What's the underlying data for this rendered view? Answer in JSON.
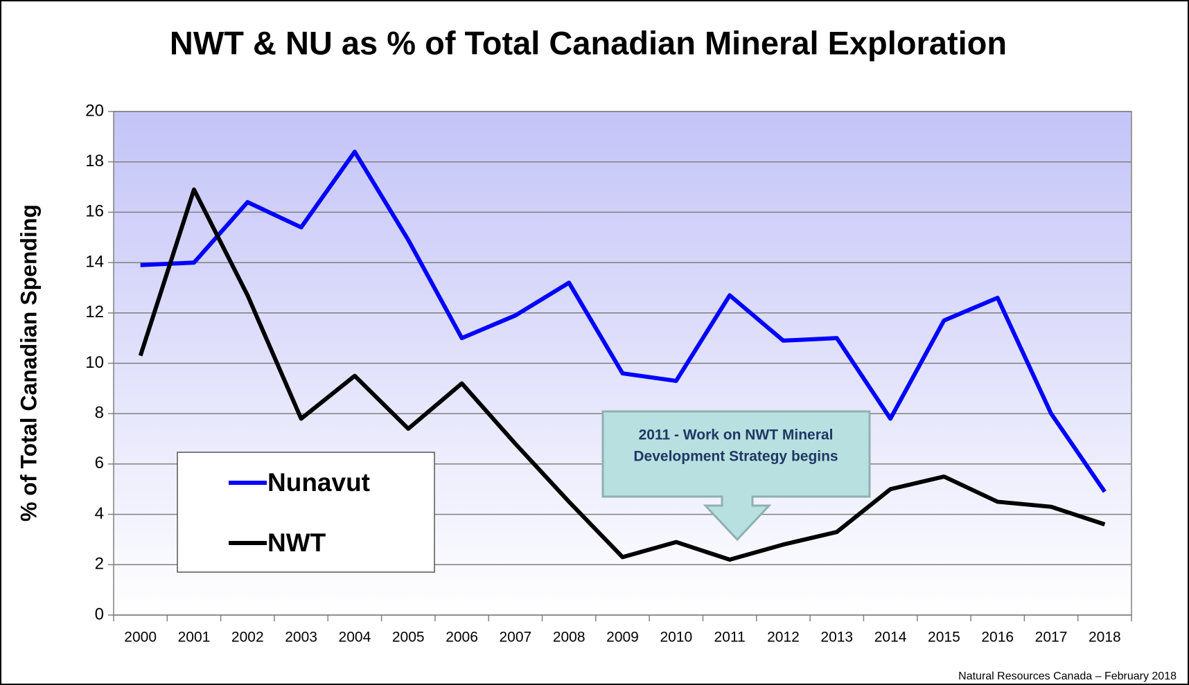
{
  "chart_data": {
    "type": "line",
    "title": "NWT & NU as % of Total Canadian Mineral Exploration",
    "y_label": "% of Total Canadian Spending",
    "source": "Natural Resources Canada – February 2018",
    "annotation": [
      "2011 - Work on NWT Mineral",
      "Development Strategy begins"
    ],
    "categories": [
      "2000",
      "2001",
      "2002",
      "2003",
      "2004",
      "2005",
      "2006",
      "2007",
      "2008",
      "2009",
      "2010",
      "2011",
      "2012",
      "2013",
      "2014",
      "2015",
      "2016",
      "2017",
      "2018"
    ],
    "series": [
      {
        "name": "Nunavut",
        "color": "#0000ff",
        "values": [
          13.9,
          14.0,
          16.4,
          15.4,
          18.4,
          14.9,
          11.0,
          11.9,
          13.2,
          9.6,
          9.3,
          12.7,
          10.9,
          11.0,
          7.8,
          11.7,
          12.6,
          8.0,
          4.9
        ]
      },
      {
        "name": "NWT",
        "color": "#000000",
        "values": [
          10.3,
          16.9,
          12.7,
          7.8,
          9.5,
          7.4,
          9.2,
          6.8,
          4.5,
          2.3,
          2.9,
          2.2,
          2.8,
          3.3,
          5.0,
          5.5,
          4.5,
          4.3,
          3.6
        ]
      }
    ],
    "ylim": [
      0,
      20
    ],
    "yticks": [
      0,
      2,
      4,
      6,
      8,
      10,
      12,
      14,
      16,
      18,
      20
    ],
    "grid": true
  }
}
